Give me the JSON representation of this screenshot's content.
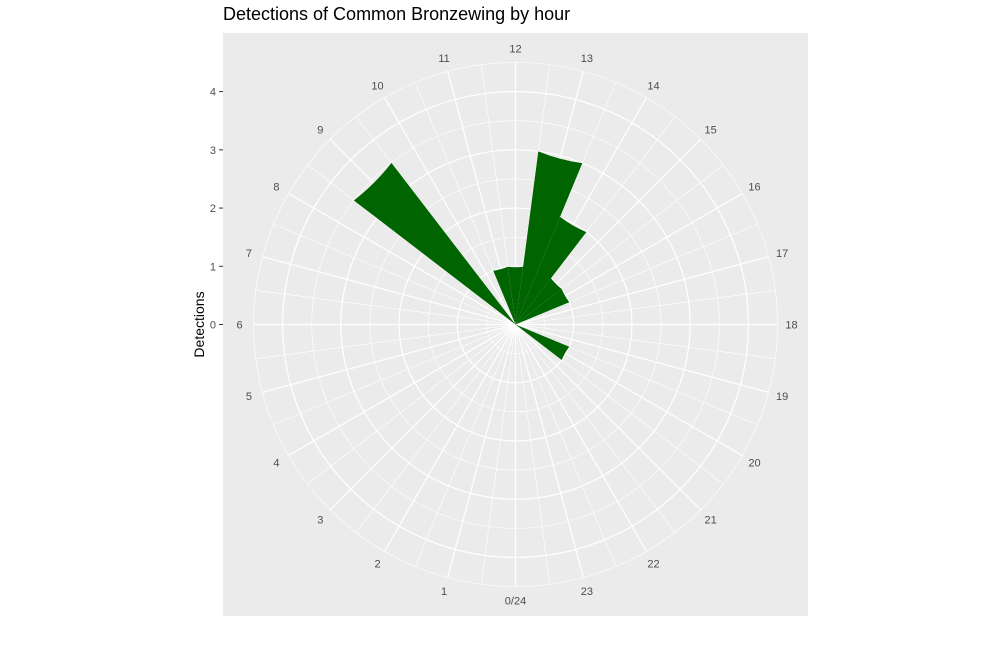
{
  "chart_data": {
    "type": "bar",
    "coord": "polar",
    "title": "Detections of Common Bronzewing by hour",
    "xlabel": "",
    "ylabel": "Detections",
    "ylim": [
      0,
      4.5
    ],
    "y_ticks": [
      0,
      1,
      2,
      3,
      4
    ],
    "x_tick_labels": [
      "0/24",
      "1",
      "2",
      "3",
      "4",
      "5",
      "6",
      "7",
      "8",
      "9",
      "10",
      "11",
      "12",
      "13",
      "14",
      "15",
      "16",
      "17",
      "18",
      "19",
      "20",
      "21",
      "22",
      "23"
    ],
    "series": [
      {
        "x": [
          9,
          11,
          12,
          13,
          14,
          15,
          16,
          20
        ],
        "values": [
          3.5,
          1,
          1,
          3,
          2,
          1,
          1,
          1
        ]
      }
    ],
    "bar_color": "#006400",
    "panel_color": "#EBEBEB",
    "grid_color": "#FFFFFF",
    "grid": true,
    "legend": "none"
  }
}
